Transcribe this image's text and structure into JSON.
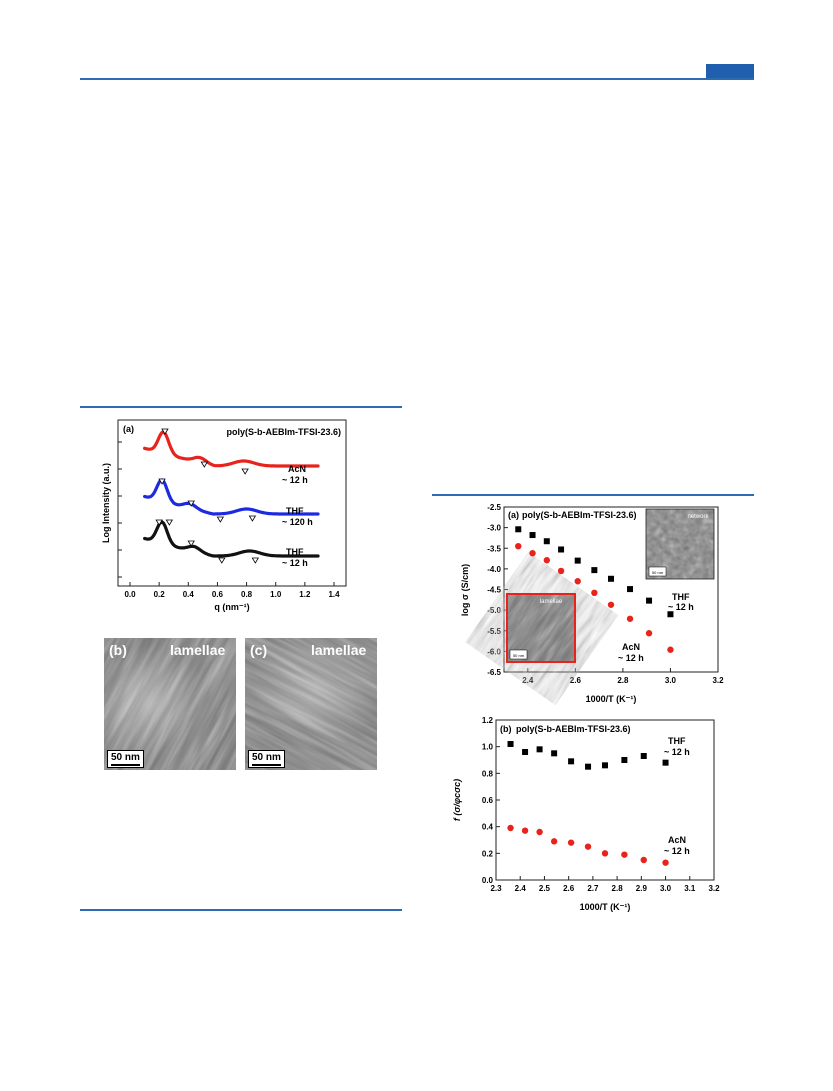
{
  "figure_left": {
    "panel_label": "(a)",
    "title": "poly(S-b-AEBIm-TFSI-23.6)",
    "xlabel": "q (nm⁻¹)",
    "ylabel": "Log Intensity (a.u.)",
    "curve_labels": [
      {
        "line1": "AcN",
        "line2": "~ 12 h"
      },
      {
        "line1": "THF",
        "line2": "~ 120 h"
      },
      {
        "line1": "THF",
        "line2": "~ 12 h"
      }
    ],
    "x_ticks": [
      "0.0",
      "0.2",
      "0.4",
      "0.6",
      "0.8",
      "1.0",
      "1.2",
      "1.4"
    ],
    "series_colors": [
      "#e8231c",
      "#1d2be0",
      "#111111"
    ]
  },
  "tem_b": {
    "panel_label": "(b)",
    "morphology": "lamellae",
    "scale": "50 nm"
  },
  "tem_c": {
    "panel_label": "(c)",
    "morphology": "lamellae",
    "scale": "50 nm"
  },
  "chart_data": [
    {
      "type": "scatter",
      "panel_label": "(a)",
      "title": "poly(S-b-AEBIm-TFSI-23.6)",
      "xlabel": "1000/T (K⁻¹)",
      "ylabel": "log σ (S/cm)",
      "xlim": [
        2.3,
        3.2
      ],
      "ylim": [
        -6.5,
        -2.5
      ],
      "x_ticks": [
        "2.4",
        "2.6",
        "2.8",
        "3.0",
        "3.2"
      ],
      "y_ticks": [
        "-2.5",
        "-3.0",
        "-3.5",
        "-4.0",
        "-4.5",
        "-5.0",
        "-5.5",
        "-6.0",
        "-6.5"
      ],
      "series": [
        {
          "name": "THF ~ 12 h",
          "marker": "square",
          "color": "#000000",
          "x": [
            2.36,
            2.42,
            2.48,
            2.54,
            2.61,
            2.68,
            2.75,
            2.83,
            2.91,
            3.0
          ],
          "y": [
            -3.04,
            -3.18,
            -3.33,
            -3.53,
            -3.8,
            -4.03,
            -4.24,
            -4.49,
            -4.77,
            -5.1
          ]
        },
        {
          "name": "AcN ~ 12 h",
          "marker": "circle",
          "color": "#e8231c",
          "x": [
            2.36,
            2.42,
            2.48,
            2.54,
            2.61,
            2.68,
            2.75,
            2.83,
            2.91,
            3.0
          ],
          "y": [
            -3.45,
            -3.62,
            -3.79,
            -4.05,
            -4.3,
            -4.58,
            -4.87,
            -5.21,
            -5.56,
            -5.96
          ]
        }
      ],
      "series_labels": [
        {
          "line1": "THF",
          "line2": "~ 12 h"
        },
        {
          "line1": "AcN",
          "line2": "~ 12 h"
        }
      ],
      "inset_labels": [
        "network",
        "lamellae"
      ],
      "inset_scale": [
        "50 nm",
        "50 nm"
      ]
    },
    {
      "type": "scatter",
      "panel_label": "(b)",
      "title": "poly(S-b-AEBIm-TFSI-23.6)",
      "xlabel": "1000/T (K⁻¹)",
      "ylabel": "f (σ/φcσc)",
      "xlim": [
        2.3,
        3.2
      ],
      "ylim": [
        0.0,
        1.2
      ],
      "x_ticks": [
        "2.3",
        "2.4",
        "2.5",
        "2.6",
        "2.7",
        "2.8",
        "2.9",
        "3.0",
        "3.1",
        "3.2"
      ],
      "y_ticks": [
        "0.0",
        "0.2",
        "0.4",
        "0.6",
        "0.8",
        "1.0",
        "1.2"
      ],
      "series": [
        {
          "name": "THF ~ 12 h",
          "marker": "square",
          "color": "#000000",
          "x": [
            2.36,
            2.42,
            2.48,
            2.54,
            2.61,
            2.68,
            2.75,
            2.83,
            2.91,
            3.0
          ],
          "y": [
            1.02,
            0.96,
            0.98,
            0.95,
            0.89,
            0.85,
            0.86,
            0.9,
            0.93,
            0.88
          ]
        },
        {
          "name": "AcN ~ 12 h",
          "marker": "circle",
          "color": "#e8231c",
          "x": [
            2.36,
            2.42,
            2.48,
            2.54,
            2.61,
            2.68,
            2.75,
            2.83,
            2.91,
            3.0
          ],
          "y": [
            0.39,
            0.37,
            0.36,
            0.29,
            0.28,
            0.25,
            0.2,
            0.19,
            0.15,
            0.13
          ]
        }
      ],
      "series_labels": [
        {
          "line1": "THF",
          "line2": "~ 12 h"
        },
        {
          "line1": "AcN",
          "line2": "~ 12 h"
        }
      ]
    }
  ]
}
